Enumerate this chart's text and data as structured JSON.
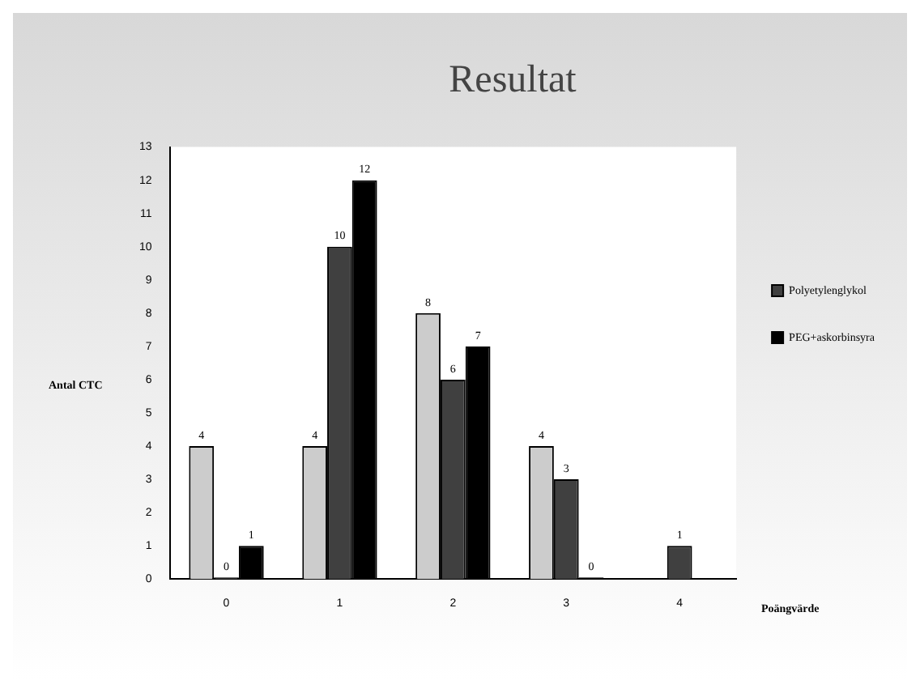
{
  "chart_data": {
    "type": "bar",
    "title": "Resultat",
    "xlabel": "Poängvärde",
    "ylabel": "Antal CTC",
    "categories": [
      "0",
      "1",
      "2",
      "3",
      "4"
    ],
    "series": [
      {
        "color": "#cccccc",
        "values": [
          4,
          4,
          8,
          4,
          null
        ]
      },
      {
        "name": "Polyetylenglykol",
        "color": "#404040",
        "values": [
          0,
          10,
          6,
          3,
          1
        ]
      },
      {
        "name": "PEG+askorbinsyra",
        "color": "#000000",
        "values": [
          1,
          12,
          7,
          0,
          null
        ]
      }
    ],
    "ylim": [
      0,
      13
    ],
    "yticks": [
      0,
      1,
      2,
      3,
      4,
      5,
      6,
      7,
      8,
      9,
      10,
      11,
      12,
      13
    ],
    "grid": false,
    "legend": "right",
    "data_labels": true
  }
}
